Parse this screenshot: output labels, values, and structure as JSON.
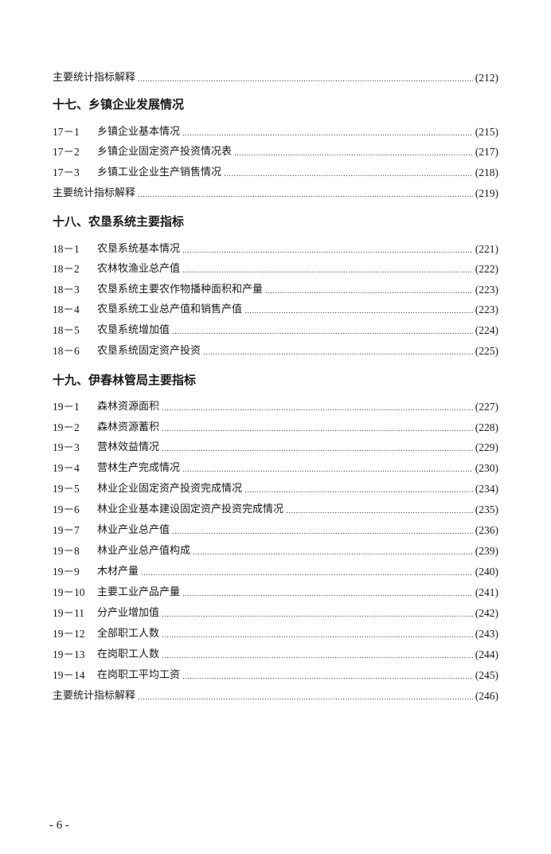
{
  "entries": [
    {
      "type": "item",
      "num": "",
      "title": "主要统计指标解释",
      "page": "(212)"
    },
    {
      "type": "heading",
      "title": "十七、乡镇企业发展情况"
    },
    {
      "type": "item",
      "num": "17－1",
      "title": "乡镇企业基本情况",
      "page": "(215)"
    },
    {
      "type": "item",
      "num": "17－2",
      "title": "乡镇企业固定资产投资情况表",
      "page": "(217)"
    },
    {
      "type": "item",
      "num": "17－3",
      "title": "乡镇工业企业生产销售情况",
      "page": "(218)"
    },
    {
      "type": "item",
      "num": "",
      "title": "主要统计指标解释",
      "page": "(219)"
    },
    {
      "type": "heading",
      "title": "十八、农垦系统主要指标"
    },
    {
      "type": "item",
      "num": "18－1",
      "title": "农垦系统基本情况",
      "page": "(221)"
    },
    {
      "type": "item",
      "num": "18－2",
      "title": "农林牧渔业总产值",
      "page": "(222)"
    },
    {
      "type": "item",
      "num": "18－3",
      "title": "农垦系统主要农作物播种面积和产量",
      "page": "(223)"
    },
    {
      "type": "item",
      "num": "18－4",
      "title": "农垦系统工业总产值和销售产值",
      "page": "(223)"
    },
    {
      "type": "item",
      "num": "18－5",
      "title": "农垦系统增加值",
      "page": "(224)"
    },
    {
      "type": "item",
      "num": "18－6",
      "title": "农垦系统固定资产投资",
      "page": "(225)"
    },
    {
      "type": "heading",
      "title": "十九、伊春林管局主要指标"
    },
    {
      "type": "item",
      "num": "19－1",
      "title": "森林资源面积",
      "page": "(227)"
    },
    {
      "type": "item",
      "num": "19－2",
      "title": "森林资源蓄积",
      "page": "(228)"
    },
    {
      "type": "item",
      "num": "19－3",
      "title": "营林效益情况",
      "page": "(229)"
    },
    {
      "type": "item",
      "num": "19－4",
      "title": "营林生产完成情况",
      "page": "(230)"
    },
    {
      "type": "item",
      "num": "19－5",
      "title": "林业企业固定资产投资完成情况",
      "page": "(234)"
    },
    {
      "type": "item",
      "num": "19－6",
      "title": "林业企业基本建设固定资产投资完成情况",
      "page": "(235)"
    },
    {
      "type": "item",
      "num": "19－7",
      "title": "林业产业总产值",
      "page": "(236)"
    },
    {
      "type": "item",
      "num": "19－8",
      "title": "林业产业总产值构成",
      "page": "(239)"
    },
    {
      "type": "item",
      "num": "19－9",
      "title": "木材产量",
      "page": "(240)"
    },
    {
      "type": "item",
      "num": "19－10",
      "title": "主要工业产品产量",
      "page": "(241)"
    },
    {
      "type": "item",
      "num": "19－11",
      "title": "分产业增加值",
      "page": "(242)"
    },
    {
      "type": "item",
      "num": "19－12",
      "title": "全部职工人数",
      "page": "(243)"
    },
    {
      "type": "item",
      "num": "19－13",
      "title": "在岗职工人数",
      "page": "(244)"
    },
    {
      "type": "item",
      "num": "19－14",
      "title": "在岗职工平均工资",
      "page": "(245)"
    },
    {
      "type": "item",
      "num": "",
      "title": "主要统计指标解释",
      "page": "(246)"
    }
  ],
  "footer": {
    "page_number": "- 6 -"
  }
}
